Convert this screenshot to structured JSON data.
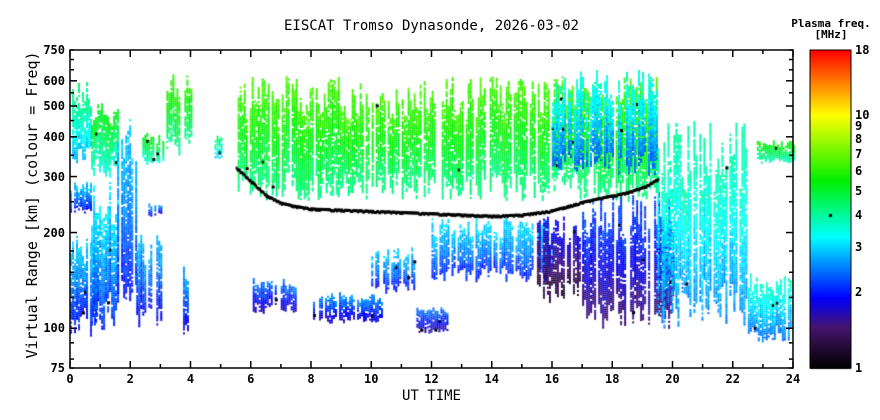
{
  "chart_data": {
    "type": "heatmap",
    "title": "EISCAT Tromso Dynasonde, 2026-03-02",
    "xlabel": "UT TIME",
    "ylabel": "Virtual Range [km] (colour = Freq)",
    "colorbar_label": "Plasma freq. [MHz]",
    "xlim": [
      0,
      24
    ],
    "ylim": [
      75,
      750
    ],
    "yscale": "log",
    "x_ticks": [
      "0",
      "2",
      "4",
      "6",
      "8",
      "10",
      "12",
      "14",
      "16",
      "18",
      "20",
      "22",
      "24"
    ],
    "y_ticks": [
      {
        "value": 75,
        "label": "75"
      },
      {
        "value": 100,
        "label": "100"
      },
      {
        "value": 200,
        "label": "200"
      },
      {
        "value": 300,
        "label": "300"
      },
      {
        "value": 400,
        "label": "400"
      },
      {
        "value": 500,
        "label": "500"
      },
      {
        "value": 600,
        "label": "600"
      },
      {
        "value": 750,
        "label": "750"
      }
    ],
    "colorbar_range": [
      1,
      18
    ],
    "colorbar_ticks": [
      "1",
      "2",
      "3",
      "4",
      "5",
      "6",
      "7",
      "8",
      "9",
      "10",
      "18"
    ],
    "echo_regions": [
      {
        "t": [
          0.0,
          0.7
        ],
        "h": [
          330,
          600
        ],
        "f": 3.5
      },
      {
        "t": [
          0.0,
          0.7
        ],
        "h": [
          230,
          290
        ],
        "f": 2.4
      },
      {
        "t": [
          0.0,
          0.9
        ],
        "h": [
          95,
          200
        ],
        "f": 2.4
      },
      {
        "t": [
          0.7,
          1.6
        ],
        "h": [
          300,
          520
        ],
        "f": 4.3
      },
      {
        "t": [
          0.7,
          1.6
        ],
        "h": [
          100,
          300
        ],
        "f": 2.6
      },
      {
        "t": [
          1.5,
          2.2
        ],
        "h": [
          95,
          600
        ],
        "f": 2.4
      },
      {
        "t": [
          2.2,
          3.0
        ],
        "h": [
          100,
          200
        ],
        "f": 2.3
      },
      {
        "t": [
          2.6,
          3.0
        ],
        "h": [
          225,
          250
        ],
        "f": 2.2
      },
      {
        "t": [
          2.4,
          3.1
        ],
        "h": [
          330,
          420
        ],
        "f": 4.4
      },
      {
        "t": [
          3.2,
          4.0
        ],
        "h": [
          350,
          650
        ],
        "f": 5.0
      },
      {
        "t": [
          3.75,
          4.0
        ],
        "h": [
          95,
          160
        ],
        "f": 2.2
      },
      {
        "t": [
          4.8,
          5.0
        ],
        "h": [
          340,
          410
        ],
        "f": 3.6
      },
      {
        "t": [
          5.5,
          19.5
        ],
        "h": [
          250,
          620
        ],
        "f": 5.2
      },
      {
        "t": [
          6.0,
          7.5
        ],
        "h": [
          112,
          145
        ],
        "f": 2.0
      },
      {
        "t": [
          8.0,
          10.5
        ],
        "h": [
          104,
          130
        ],
        "f": 2.1
      },
      {
        "t": [
          10.0,
          11.5
        ],
        "h": [
          130,
          180
        ],
        "f": 2.4
      },
      {
        "t": [
          11.5,
          12.5
        ],
        "h": [
          97,
          118
        ],
        "f": 2.0
      },
      {
        "t": [
          12.0,
          16.0
        ],
        "h": [
          140,
          225
        ],
        "f": 2.5
      },
      {
        "t": [
          15.5,
          17.0
        ],
        "h": [
          120,
          225
        ],
        "f": 1.5
      },
      {
        "t": [
          17.0,
          20.0
        ],
        "h": [
          100,
          270
        ],
        "f": 1.8
      },
      {
        "t": [
          16.0,
          19.5
        ],
        "h": [
          300,
          650
        ],
        "f": 2.9
      },
      {
        "t": [
          19.5,
          22.5
        ],
        "h": [
          100,
          450
        ],
        "f": 3.2
      },
      {
        "t": [
          22.5,
          24.0
        ],
        "h": [
          90,
          150
        ],
        "f": 3.0
      },
      {
        "t": [
          22.8,
          24.0
        ],
        "h": [
          330,
          390
        ],
        "f": 4.5
      }
    ],
    "f_trace": [
      [
        5.5,
        320
      ],
      [
        6,
        290
      ],
      [
        6.5,
        262
      ],
      [
        7,
        248
      ],
      [
        7.5,
        242
      ],
      [
        8,
        238
      ],
      [
        9,
        236
      ],
      [
        10,
        234
      ],
      [
        11,
        232
      ],
      [
        12,
        230
      ],
      [
        13,
        228
      ],
      [
        14,
        226
      ],
      [
        15,
        228
      ],
      [
        16,
        235
      ],
      [
        17,
        250
      ],
      [
        18,
        262
      ],
      [
        18.5,
        268
      ],
      [
        19,
        278
      ],
      [
        19.5,
        295
      ]
    ]
  }
}
